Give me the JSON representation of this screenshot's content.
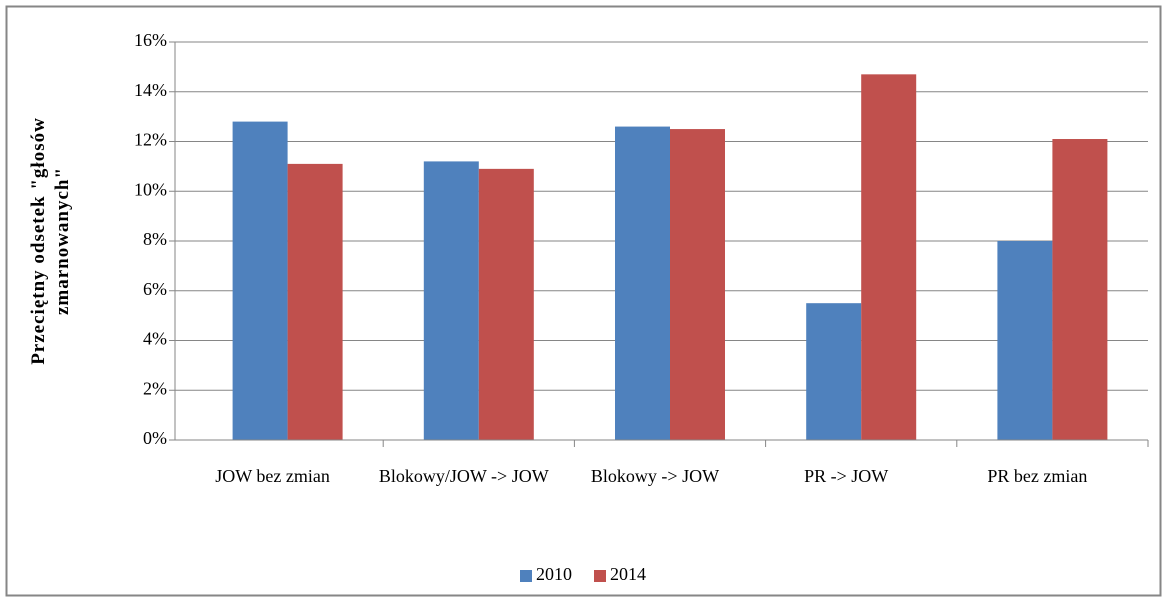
{
  "chart_data": {
    "type": "bar",
    "y_label": "Przeciętny odsetek \"głosów zmarnowanych\"",
    "categories": [
      "JOW bez zmian",
      "Blokowy/JOW -> JOW",
      "Blokowy -> JOW",
      "PR -> JOW",
      "PR bez zmian"
    ],
    "series": [
      {
        "name": "2010",
        "color": "#4f81bd",
        "values": [
          12.8,
          11.2,
          12.6,
          5.5,
          8.0
        ]
      },
      {
        "name": "2014",
        "color": "#c0504d",
        "values": [
          11.1,
          10.9,
          12.5,
          14.7,
          12.1
        ]
      }
    ],
    "ylim": [
      0,
      16
    ],
    "yticks": [
      {
        "value": 0,
        "label": "0%"
      },
      {
        "value": 2,
        "label": "2%"
      },
      {
        "value": 4,
        "label": "4%"
      },
      {
        "value": 6,
        "label": "6%"
      },
      {
        "value": 8,
        "label": "8%"
      },
      {
        "value": 10,
        "label": "10%"
      },
      {
        "value": 12,
        "label": "12%"
      },
      {
        "value": 14,
        "label": "14%"
      },
      {
        "value": 16,
        "label": "16%"
      }
    ],
    "grid": true,
    "legend": "bottom"
  }
}
